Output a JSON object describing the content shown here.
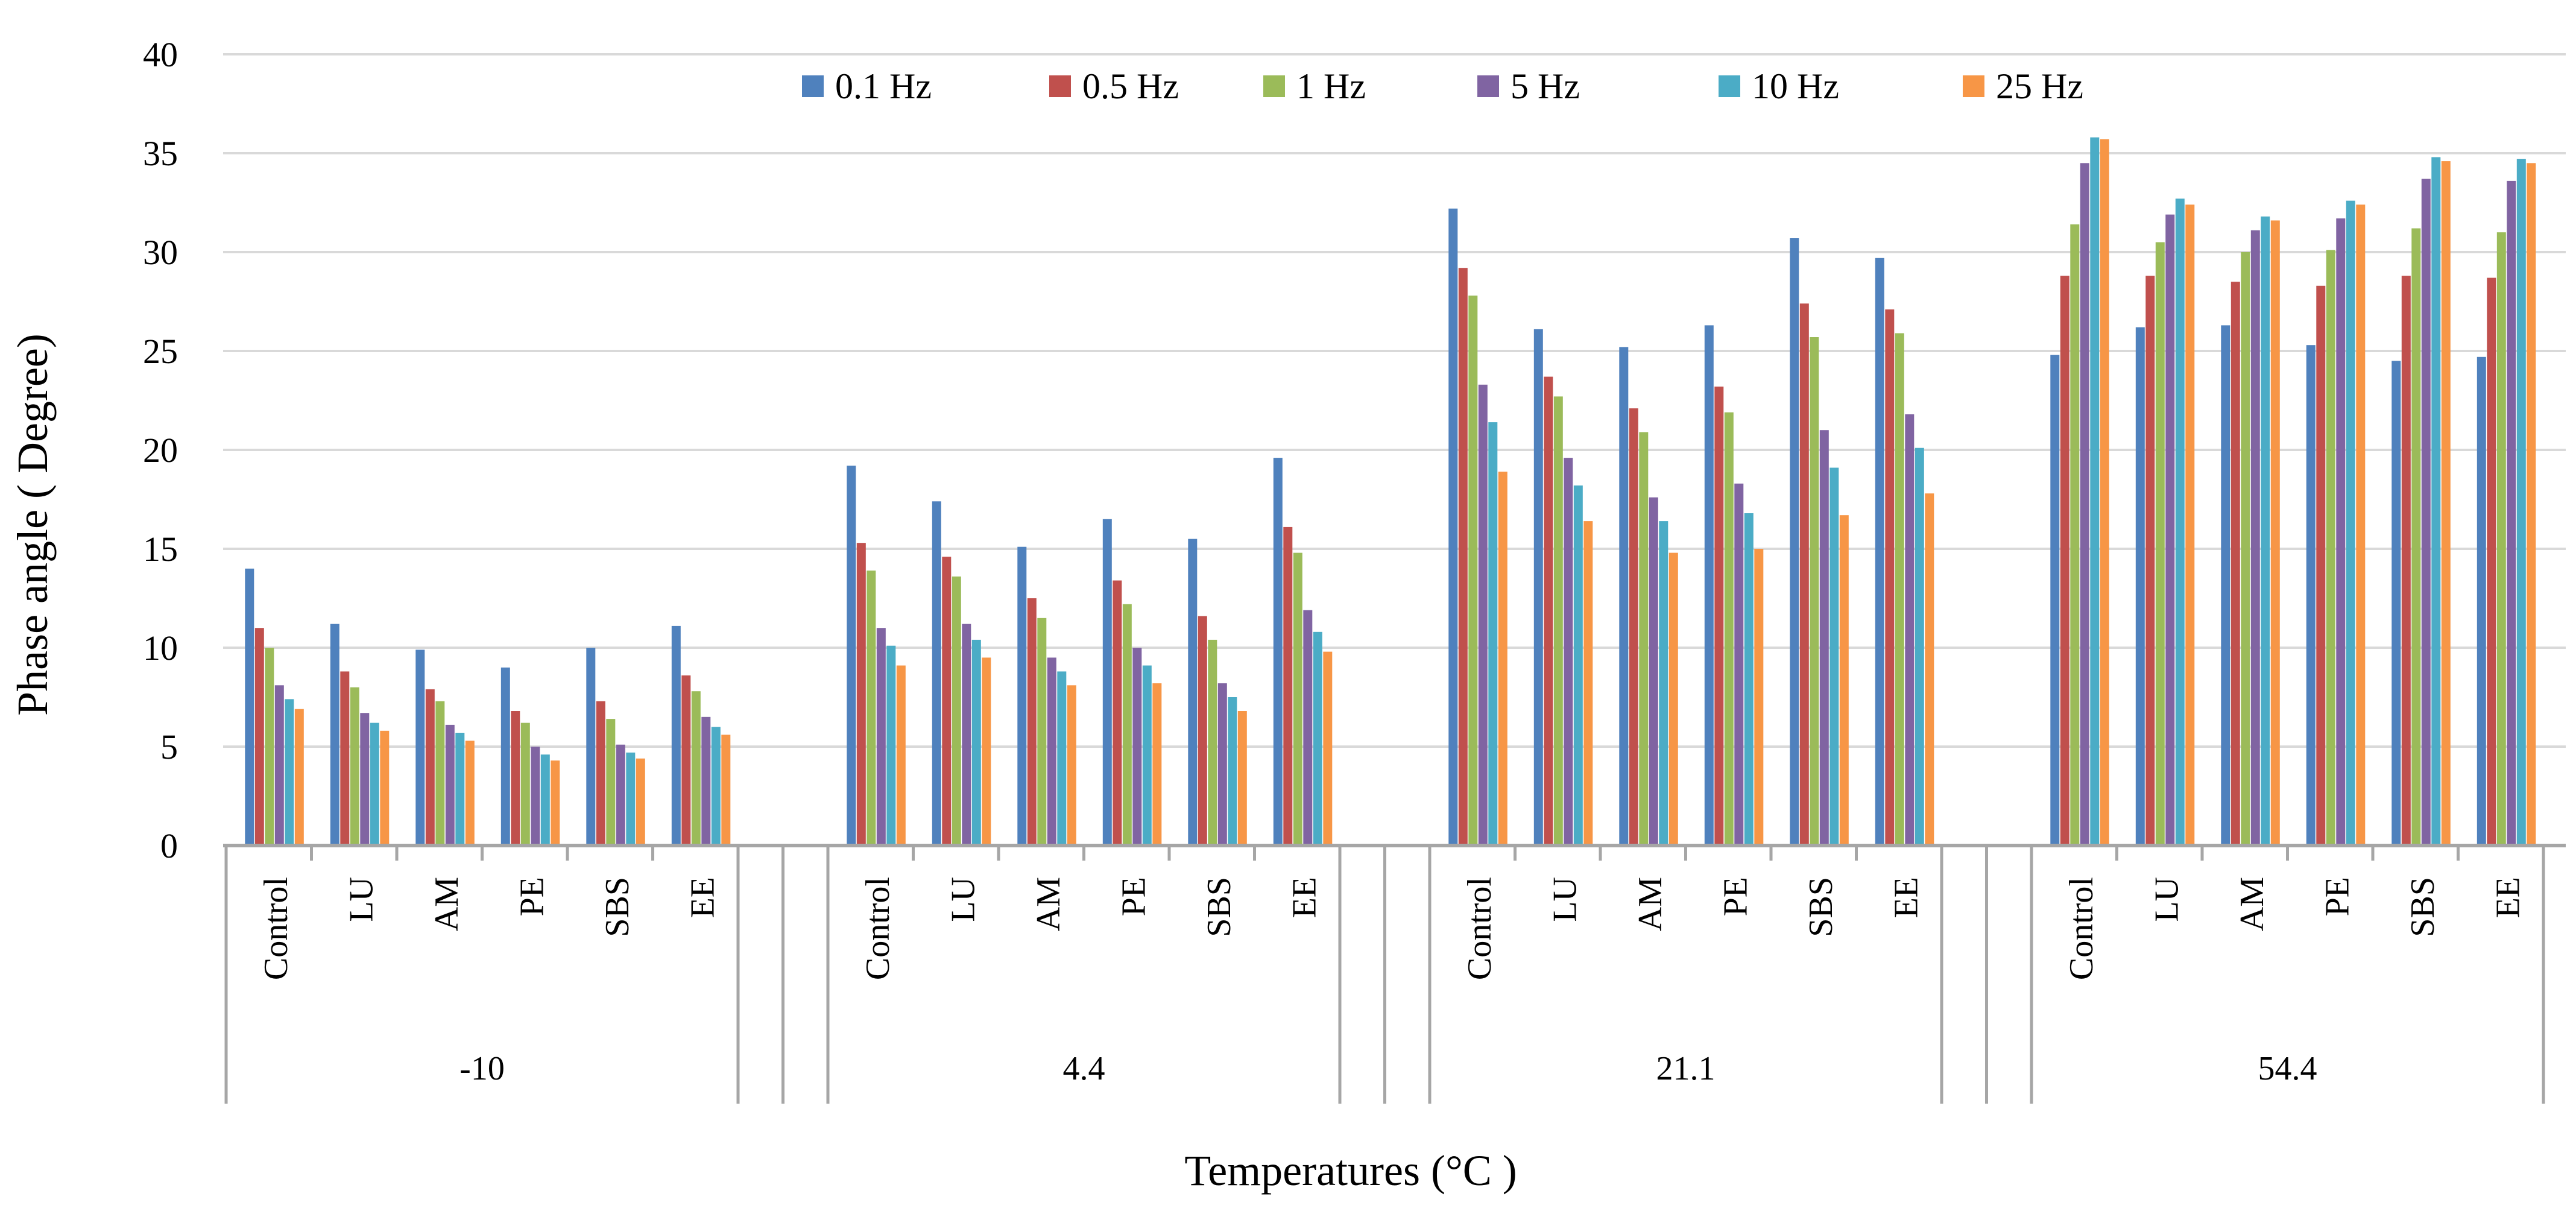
{
  "chart_data": {
    "type": "bar",
    "title": "",
    "ylabel": "Phase angle ( Degree)",
    "xlabel": "Temperatures (°C )",
    "ylim": [
      0,
      40
    ],
    "yticks": [
      0,
      5,
      10,
      15,
      20,
      25,
      30,
      35,
      40
    ],
    "grid": true,
    "legend_position": "top",
    "groups": [
      "-10",
      "4.4",
      "21.1",
      "54.4"
    ],
    "categories": [
      "Control",
      "LU",
      "AM",
      "PE",
      "SBS",
      "EE"
    ],
    "series": [
      {
        "name": "0.1 Hz",
        "color": "#4F81BD",
        "values": [
          [
            14.0,
            11.2,
            9.9,
            9.0,
            10.0,
            11.1
          ],
          [
            19.2,
            17.4,
            15.1,
            16.5,
            15.5,
            19.6
          ],
          [
            32.2,
            26.1,
            25.2,
            26.3,
            30.7,
            29.7
          ],
          [
            24.8,
            26.2,
            26.3,
            25.3,
            24.5,
            24.7
          ]
        ]
      },
      {
        "name": "0.5 Hz",
        "color": "#C0504D",
        "values": [
          [
            11.0,
            8.8,
            7.9,
            6.8,
            7.3,
            8.6
          ],
          [
            15.3,
            14.6,
            12.5,
            13.4,
            11.6,
            16.1
          ],
          [
            29.2,
            23.7,
            22.1,
            23.2,
            27.4,
            27.1
          ],
          [
            28.8,
            28.8,
            28.5,
            28.3,
            28.8,
            28.7
          ]
        ]
      },
      {
        "name": "1 Hz",
        "color": "#9BBB59",
        "values": [
          [
            10.0,
            8.0,
            7.3,
            6.2,
            6.4,
            7.8
          ],
          [
            13.9,
            13.6,
            11.5,
            12.2,
            10.4,
            14.8
          ],
          [
            27.8,
            22.7,
            20.9,
            21.9,
            25.7,
            25.9
          ],
          [
            31.4,
            30.5,
            30.0,
            30.1,
            31.2,
            31.0
          ]
        ]
      },
      {
        "name": "5 Hz",
        "color": "#8064A2",
        "values": [
          [
            8.1,
            6.7,
            6.1,
            5.0,
            5.1,
            6.5
          ],
          [
            11.0,
            11.2,
            9.5,
            10.0,
            8.2,
            11.9
          ],
          [
            23.3,
            19.6,
            17.6,
            18.3,
            21.0,
            21.8
          ],
          [
            34.5,
            31.9,
            31.1,
            31.7,
            33.7,
            33.6
          ]
        ]
      },
      {
        "name": "10 Hz",
        "color": "#4BACC6",
        "values": [
          [
            7.4,
            6.2,
            5.7,
            4.6,
            4.7,
            6.0
          ],
          [
            10.1,
            10.4,
            8.8,
            9.1,
            7.5,
            10.8
          ],
          [
            21.4,
            18.2,
            16.4,
            16.8,
            19.1,
            20.1
          ],
          [
            35.8,
            32.7,
            31.8,
            32.6,
            34.8,
            34.7
          ]
        ]
      },
      {
        "name": "25 Hz",
        "color": "#F79646",
        "values": [
          [
            6.9,
            5.8,
            5.3,
            4.3,
            4.4,
            5.6
          ],
          [
            9.1,
            9.5,
            8.1,
            8.2,
            6.8,
            9.8
          ],
          [
            18.9,
            16.4,
            14.8,
            15.0,
            16.7,
            17.8
          ],
          [
            35.7,
            32.4,
            31.6,
            32.4,
            34.6,
            34.5
          ]
        ]
      }
    ]
  },
  "colors": {
    "grid": "#D9D9D9",
    "axis": "#A6A6A6"
  }
}
